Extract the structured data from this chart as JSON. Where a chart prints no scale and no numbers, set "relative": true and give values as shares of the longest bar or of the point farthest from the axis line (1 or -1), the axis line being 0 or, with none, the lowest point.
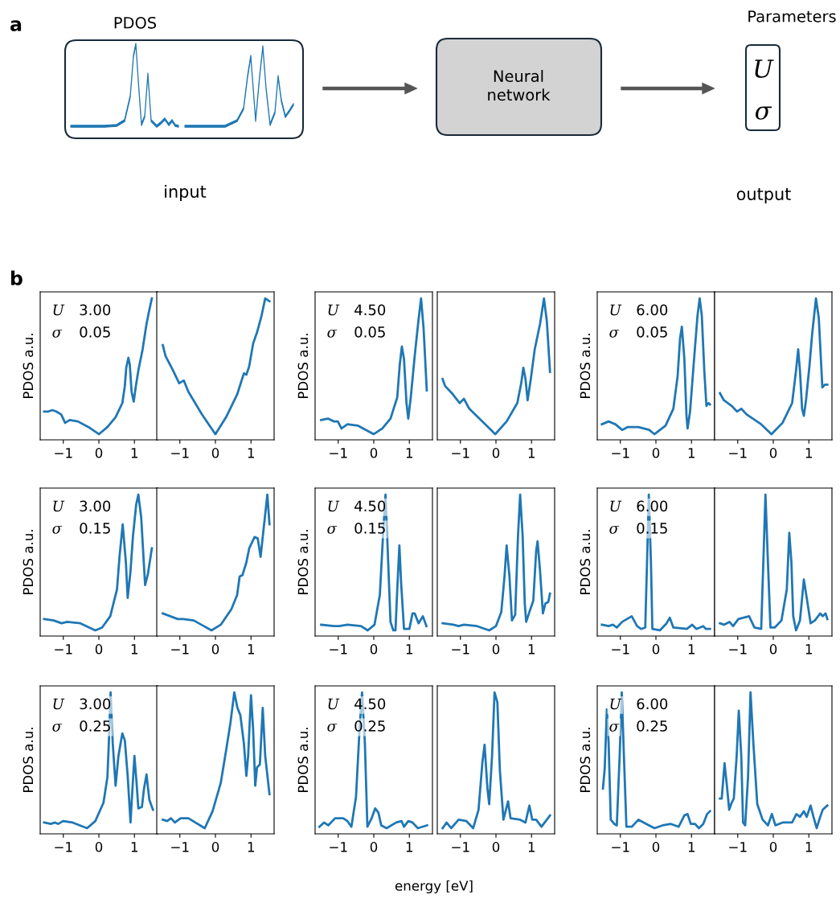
{
  "chart_data": [
    {
      "type": "other",
      "annotations": [
        "a",
        "PDOS",
        "Neural\nnetwork",
        "Parameters",
        "U",
        "σ",
        "input",
        "output",
        "b"
      ]
    },
    {
      "type": "line",
      "relative": true,
      "color": "#1f77b4",
      "ylabel": "PDOS a.u.",
      "tick_labels": "x",
      "xlim": [
        -1.65,
        1.65
      ],
      "xticks": [
        -1,
        0,
        1
      ],
      "annotations": [
        "U",
        "3.00",
        "σ",
        "0.05"
      ],
      "x": [
        -1.54,
        -1.42,
        -1.31,
        -1.2,
        -1.06,
        -0.95,
        -0.82,
        -0.59,
        -0.29,
        0,
        0.24,
        0.47,
        0.66,
        0.73,
        0.77,
        0.83,
        0.87,
        0.92,
        0.98,
        1.04,
        1.11,
        1.23,
        1.34,
        1.42,
        1.49
      ],
      "values": [
        0.2,
        0.2,
        0.21,
        0.2,
        0.18,
        0.12,
        0.14,
        0.13,
        0.09,
        0.04,
        0.09,
        0.16,
        0.26,
        0.38,
        0.51,
        0.58,
        0.53,
        0.34,
        0.27,
        0.38,
        0.49,
        0.64,
        0.82,
        0.92,
        1.0
      ]
    },
    {
      "type": "line",
      "relative": true,
      "color": "#1f77b4",
      "tick_labels": "x",
      "xlim": [
        -1.65,
        1.65
      ],
      "xticks": [
        -1,
        0,
        1
      ],
      "x": [
        -1.48,
        -1.4,
        -1.21,
        -1.02,
        -0.89,
        -0.76,
        -0.38,
        0,
        0.3,
        0.61,
        0.8,
        0.87,
        0.95,
        1.06,
        1.17,
        1.29,
        1.4,
        1.52
      ],
      "values": [
        0.67,
        0.59,
        0.5,
        0.4,
        0.42,
        0.34,
        0.18,
        0.04,
        0.16,
        0.32,
        0.47,
        0.46,
        0.52,
        0.68,
        0.76,
        0.87,
        1.0,
        0.98
      ]
    },
    {
      "type": "line",
      "relative": true,
      "color": "#1f77b4",
      "ylabel": "PDOS a.u.",
      "tick_labels": "x",
      "xlim": [
        -1.65,
        1.65
      ],
      "xticks": [
        -1,
        0,
        1
      ],
      "annotations": [
        "U",
        "4.50",
        "σ",
        "0.05"
      ],
      "x": [
        -1.48,
        -1.29,
        -1.12,
        -1.01,
        -0.91,
        -0.74,
        -0.44,
        0,
        0.24,
        0.47,
        0.66,
        0.73,
        0.79,
        0.85,
        0.92,
        0.97,
        1.04,
        1.15,
        1.25,
        1.33,
        1.4,
        1.49
      ],
      "values": [
        0.14,
        0.15,
        0.13,
        0.13,
        0.08,
        0.11,
        0.1,
        0.04,
        0.08,
        0.15,
        0.3,
        0.53,
        0.66,
        0.57,
        0.26,
        0.15,
        0.3,
        0.59,
        0.83,
        1.0,
        0.79,
        0.35
      ]
    },
    {
      "type": "line",
      "relative": true,
      "color": "#1f77b4",
      "tick_labels": "x",
      "xlim": [
        -1.65,
        1.65
      ],
      "xticks": [
        -1,
        0,
        1
      ],
      "x": [
        -1.5,
        -1.43,
        -1.24,
        -1.02,
        -0.9,
        -0.75,
        -0.38,
        -0.02,
        0.3,
        0.6,
        0.71,
        0.77,
        0.83,
        0.89,
        0.98,
        1.09,
        1.24,
        1.35,
        1.43,
        1.52
      ],
      "values": [
        0.43,
        0.38,
        0.33,
        0.26,
        0.29,
        0.22,
        0.13,
        0.04,
        0.13,
        0.26,
        0.4,
        0.51,
        0.43,
        0.28,
        0.43,
        0.64,
        0.82,
        1.0,
        0.84,
        0.48
      ]
    },
    {
      "type": "line",
      "relative": true,
      "color": "#1f77b4",
      "ylabel": "PDOS a.u.",
      "tick_labels": "x",
      "xlim": [
        -1.65,
        1.65
      ],
      "xticks": [
        -1,
        0,
        1
      ],
      "annotations": [
        "U",
        "6.00",
        "σ",
        "0.05"
      ],
      "x": [
        -1.52,
        -1.33,
        -1.14,
        -0.95,
        -0.8,
        -0.49,
        -0.19,
        -0.04,
        0.27,
        0.49,
        0.61,
        0.68,
        0.73,
        0.8,
        0.86,
        0.89,
        0.96,
        1.06,
        1.17,
        1.23,
        1.29,
        1.36,
        1.42,
        1.48,
        1.52
      ],
      "values": [
        0.11,
        0.13,
        0.11,
        0.07,
        0.09,
        0.09,
        0.07,
        0.04,
        0.1,
        0.22,
        0.45,
        0.72,
        0.8,
        0.57,
        0.17,
        0.08,
        0.2,
        0.53,
        0.88,
        1.0,
        0.88,
        0.49,
        0.24,
        0.26,
        0.25
      ]
    },
    {
      "type": "line",
      "relative": true,
      "color": "#1f77b4",
      "tick_labels": "x",
      "xlim": [
        -1.65,
        1.65
      ],
      "xticks": [
        -1,
        0,
        1
      ],
      "x": [
        -1.5,
        -1.39,
        -1.17,
        -1.02,
        -0.9,
        -0.75,
        -0.34,
        -0.05,
        0.26,
        0.53,
        0.64,
        0.7,
        0.75,
        0.81,
        0.86,
        0.92,
        1.02,
        1.09,
        1.2,
        1.28,
        1.38,
        1.45,
        1.52
      ],
      "values": [
        0.33,
        0.28,
        0.24,
        0.2,
        0.22,
        0.18,
        0.11,
        0.04,
        0.12,
        0.26,
        0.49,
        0.64,
        0.49,
        0.22,
        0.17,
        0.28,
        0.53,
        0.74,
        1.0,
        0.86,
        0.37,
        0.39,
        0.39
      ]
    },
    {
      "type": "line",
      "relative": true,
      "color": "#1f77b4",
      "ylabel": "PDOS a.u.",
      "tick_labels": "x",
      "xlim": [
        -1.65,
        1.65
      ],
      "xticks": [
        -1,
        0,
        1
      ],
      "annotations": [
        "U",
        "3.00",
        "σ",
        "0.15"
      ],
      "x": [
        -1.54,
        -1.27,
        -1.05,
        -0.89,
        -0.52,
        -0.1,
        0.09,
        0.32,
        0.51,
        0.58,
        0.67,
        0.76,
        0.81,
        0.89,
        0.96,
        1.05,
        1.11,
        1.19,
        1.3,
        1.38,
        1.49
      ],
      "values": [
        0.12,
        0.11,
        0.09,
        0.1,
        0.09,
        0.04,
        0.06,
        0.14,
        0.33,
        0.56,
        0.79,
        0.52,
        0.27,
        0.46,
        0.71,
        0.93,
        1.0,
        0.84,
        0.36,
        0.44,
        0.62
      ]
    },
    {
      "type": "line",
      "relative": true,
      "color": "#1f77b4",
      "tick_labels": "x",
      "xlim": [
        -1.65,
        1.65
      ],
      "xticks": [
        -1,
        0,
        1
      ],
      "x": [
        -1.48,
        -1.06,
        -0.91,
        -0.61,
        -0.11,
        0.15,
        0.45,
        0.61,
        0.68,
        0.76,
        0.87,
        0.95,
        1.1,
        1.19,
        1.27,
        1.36,
        1.46,
        1.52
      ],
      "values": [
        0.16,
        0.12,
        0.12,
        0.11,
        0.04,
        0.08,
        0.19,
        0.29,
        0.42,
        0.43,
        0.52,
        0.62,
        0.7,
        0.69,
        0.56,
        0.77,
        1.0,
        0.79
      ]
    },
    {
      "type": "line",
      "relative": true,
      "color": "#1f77b4",
      "ylabel": "PDOS a.u.",
      "tick_labels": "x",
      "xlim": [
        -1.65,
        1.65
      ],
      "xticks": [
        -1,
        0,
        1
      ],
      "annotations": [
        "U",
        "4.50",
        "σ",
        "0.15"
      ],
      "x": [
        -1.48,
        -1.12,
        -0.97,
        -0.74,
        -0.36,
        -0.17,
        0.02,
        0.17,
        0.26,
        0.33,
        0.39,
        0.47,
        0.55,
        0.61,
        0.66,
        0.72,
        0.77,
        0.85,
        1.0,
        1.09,
        1.15,
        1.26,
        1.38,
        1.48
      ],
      "values": [
        0.08,
        0.07,
        0.07,
        0.08,
        0.07,
        0.04,
        0.08,
        0.29,
        0.71,
        1.0,
        0.62,
        0.1,
        0.04,
        0.04,
        0.33,
        0.64,
        0.37,
        0.05,
        0.05,
        0.16,
        0.16,
        0.09,
        0.14,
        0.07
      ]
    },
    {
      "type": "line",
      "relative": true,
      "color": "#1f77b4",
      "tick_labels": "x",
      "xlim": [
        -1.65,
        1.65
      ],
      "xticks": [
        -1,
        0,
        1
      ],
      "x": [
        -1.5,
        -1.2,
        -1.05,
        -0.9,
        -0.53,
        -0.19,
        0,
        0.15,
        0.24,
        0.3,
        0.38,
        0.45,
        0.54,
        0.62,
        0.68,
        0.75,
        0.81,
        0.85,
        0.94,
        1.05,
        1.13,
        1.17,
        1.24,
        1.32,
        1.39,
        1.47,
        1.52
      ],
      "values": [
        0.09,
        0.08,
        0.07,
        0.08,
        0.07,
        0.04,
        0.07,
        0.17,
        0.42,
        0.64,
        0.42,
        0.11,
        0.15,
        0.71,
        1.0,
        0.71,
        0.23,
        0.1,
        0.17,
        0.25,
        0.6,
        0.67,
        0.46,
        0.16,
        0.23,
        0.24,
        0.3
      ]
    },
    {
      "type": "line",
      "relative": true,
      "color": "#1f77b4",
      "ylabel": "PDOS a.u.",
      "tick_labels": "x",
      "xlim": [
        -1.65,
        1.65
      ],
      "xticks": [
        -1,
        0,
        1
      ],
      "annotations": [
        "U",
        "6.00",
        "σ",
        "0.15"
      ],
      "x": [
        -1.52,
        -1.33,
        -1.21,
        -1.1,
        -0.95,
        -0.68,
        -0.53,
        -0.42,
        -0.3,
        -0.25,
        -0.2,
        -0.14,
        -0.1,
        0.11,
        0.3,
        0.39,
        0.49,
        0.87,
        1.02,
        1.14,
        1.33,
        1.4,
        1.52
      ],
      "values": [
        0.08,
        0.07,
        0.08,
        0.06,
        0.1,
        0.14,
        0.07,
        0.05,
        0.06,
        0.52,
        1.0,
        0.52,
        0.05,
        0.04,
        0.09,
        0.13,
        0.06,
        0.05,
        0.08,
        0.05,
        0.07,
        0.05,
        0.05
      ]
    },
    {
      "type": "line",
      "relative": true,
      "color": "#1f77b4",
      "tick_labels": "x",
      "xlim": [
        -1.65,
        1.65
      ],
      "xticks": [
        -1,
        0,
        1
      ],
      "x": [
        -1.5,
        -1.39,
        -1.23,
        -1.13,
        -0.98,
        -0.68,
        -0.53,
        -0.34,
        -0.28,
        -0.22,
        -0.15,
        -0.08,
        0.04,
        0.23,
        0.38,
        0.45,
        0.51,
        0.56,
        0.64,
        0.75,
        0.86,
        0.94,
        1.05,
        1.17,
        1.32,
        1.39,
        1.47,
        1.52
      ],
      "values": [
        0.09,
        0.08,
        0.1,
        0.07,
        0.12,
        0.14,
        0.06,
        0.05,
        0.52,
        1.0,
        0.52,
        0.06,
        0.06,
        0.11,
        0.33,
        0.73,
        0.52,
        0.14,
        0.04,
        0.11,
        0.4,
        0.27,
        0.09,
        0.11,
        0.16,
        0.14,
        0.16,
        0.12
      ]
    },
    {
      "type": "line",
      "relative": true,
      "color": "#1f77b4",
      "ylabel": "PDOS a.u.",
      "tick_labels": "x",
      "xlim": [
        -1.65,
        1.65
      ],
      "xticks": [
        -1,
        0,
        1
      ],
      "annotations": [
        "U",
        "3.00",
        "σ",
        "0.25"
      ],
      "x": [
        -1.54,
        -1.35,
        -1.23,
        -1.14,
        -1.01,
        -0.74,
        -0.33,
        -0.1,
        0.13,
        0.24,
        0.28,
        0.33,
        0.39,
        0.47,
        0.55,
        0.66,
        0.73,
        0.81,
        0.89,
        0.94,
        1.0,
        1.06,
        1.11,
        1.21,
        1.27,
        1.34,
        1.42,
        1.52
      ],
      "values": [
        0.08,
        0.07,
        0.08,
        0.07,
        0.09,
        0.08,
        0.04,
        0.09,
        0.22,
        0.4,
        0.64,
        1.0,
        0.64,
        0.34,
        0.55,
        0.71,
        0.66,
        0.41,
        0.08,
        0.3,
        0.55,
        0.36,
        0.18,
        0.19,
        0.32,
        0.42,
        0.24,
        0.17
      ]
    },
    {
      "type": "line",
      "relative": true,
      "color": "#1f77b4",
      "tick_labels": "x",
      "xlim": [
        -1.65,
        1.65
      ],
      "xticks": [
        -1,
        0,
        1
      ],
      "x": [
        -1.48,
        -1.36,
        -1.25,
        -1.14,
        -0.98,
        -0.76,
        -0.3,
        -0.08,
        0.15,
        0.3,
        0.42,
        0.53,
        0.62,
        0.7,
        0.8,
        0.87,
        0.92,
        1.0,
        1.06,
        1.12,
        1.17,
        1.25,
        1.33,
        1.4,
        1.52
      ],
      "values": [
        0.1,
        0.09,
        0.11,
        0.08,
        0.11,
        0.11,
        0.04,
        0.16,
        0.36,
        0.59,
        0.78,
        1.0,
        0.89,
        0.84,
        0.64,
        0.41,
        0.55,
        0.98,
        0.74,
        0.34,
        0.47,
        0.49,
        0.89,
        0.55,
        0.28
      ]
    },
    {
      "type": "line",
      "relative": true,
      "color": "#1f77b4",
      "ylabel": "PDOS a.u.",
      "tick_labels": "x",
      "xlim": [
        -1.65,
        1.65
      ],
      "xticks": [
        -1,
        0,
        1
      ],
      "annotations": [
        "U",
        "4.50",
        "σ",
        "0.25"
      ],
      "xlabel": "energy [eV]",
      "x": [
        -1.53,
        -1.4,
        -1.28,
        -1.09,
        -0.86,
        -0.74,
        -0.63,
        -0.5,
        -0.4,
        -0.33,
        -0.25,
        -0.18,
        -0.06,
        0.04,
        0.13,
        0.21,
        0.36,
        0.63,
        0.78,
        0.85,
        0.97,
        1.09,
        1.24,
        1.5
      ],
      "values": [
        0.05,
        0.08,
        0.06,
        0.11,
        0.11,
        0.09,
        0.05,
        0.26,
        0.74,
        1.0,
        0.64,
        0.05,
        0.11,
        0.18,
        0.15,
        0.06,
        0.04,
        0.08,
        0.09,
        0.05,
        0.09,
        0.08,
        0.04,
        0.06
      ]
    },
    {
      "type": "line",
      "relative": true,
      "color": "#1f77b4",
      "tick_labels": "x",
      "xlim": [
        -1.65,
        1.65
      ],
      "xticks": [
        -1,
        0,
        1
      ],
      "x": [
        -1.5,
        -1.39,
        -1.26,
        -1.05,
        -0.83,
        -0.64,
        -0.49,
        -0.38,
        -0.32,
        -0.24,
        -0.19,
        -0.11,
        -0.04,
        0.04,
        0.11,
        0.21,
        0.34,
        0.41,
        0.68,
        0.83,
        0.94,
        1.02,
        1.13,
        1.28,
        1.43,
        1.52
      ],
      "values": [
        0.04,
        0.08,
        0.04,
        0.1,
        0.09,
        0.04,
        0.17,
        0.51,
        0.63,
        0.32,
        0.21,
        0.55,
        1.0,
        0.93,
        0.45,
        0.1,
        0.23,
        0.11,
        0.1,
        0.08,
        0.2,
        0.1,
        0.1,
        0.05,
        0.1,
        0.13
      ]
    },
    {
      "type": "line",
      "relative": true,
      "color": "#1f77b4",
      "ylabel": "PDOS a.u.",
      "tick_labels": "x",
      "xlim": [
        -1.65,
        1.65
      ],
      "xticks": [
        -1,
        0,
        1
      ],
      "annotations": [
        "U",
        "6.00",
        "σ",
        "0.25"
      ],
      "x": [
        -1.49,
        -1.44,
        -1.38,
        -1.33,
        -1.27,
        -1.17,
        -1.1,
        -1.02,
        -0.96,
        -0.9,
        -0.83,
        -0.68,
        -0.49,
        -0.27,
        -0.04,
        0.19,
        0.42,
        0.64,
        0.8,
        0.89,
        0.98,
        1.1,
        1.21,
        1.33,
        1.44,
        1.52
      ],
      "values": [
        0.32,
        0.46,
        0.88,
        0.64,
        0.1,
        0.07,
        0.06,
        0.55,
        1.0,
        0.55,
        0.05,
        0.05,
        0.1,
        0.07,
        0.04,
        0.06,
        0.07,
        0.05,
        0.13,
        0.14,
        0.07,
        0.07,
        0.04,
        0.07,
        0.14,
        0.16
      ]
    },
    {
      "type": "line",
      "relative": true,
      "color": "#1f77b4",
      "tick_labels": "x",
      "xlim": [
        -1.65,
        1.65
      ],
      "xticks": [
        -1,
        0,
        1
      ],
      "x": [
        -1.5,
        -1.45,
        -1.37,
        -1.3,
        -1.24,
        -1.17,
        -1.11,
        -1.03,
        -0.97,
        -0.9,
        -0.85,
        -0.79,
        -0.71,
        -0.64,
        -0.56,
        -0.45,
        -0.3,
        -0.15,
        -0.04,
        0.06,
        0.26,
        0.53,
        0.65,
        0.75,
        0.86,
        0.94,
        1.05,
        1.13,
        1.22,
        1.32,
        1.39,
        1.52
      ],
      "values": [
        0.25,
        0.25,
        0.5,
        0.33,
        0.17,
        0.22,
        0.25,
        0.55,
        0.87,
        0.55,
        0.08,
        0.06,
        0.4,
        1.0,
        0.64,
        0.21,
        0.1,
        0.06,
        0.14,
        0.06,
        0.08,
        0.08,
        0.14,
        0.12,
        0.16,
        0.12,
        0.2,
        0.12,
        0.04,
        0.12,
        0.17,
        0.2
      ]
    }
  ]
}
